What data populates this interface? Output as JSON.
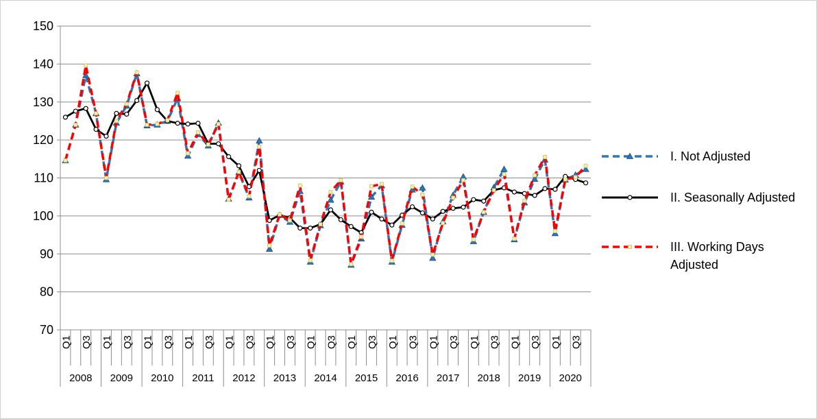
{
  "chart_data": {
    "type": "line",
    "categories": [
      "Q1",
      null,
      "Q3",
      null,
      "Q1",
      null,
      "Q3",
      null,
      "Q1",
      null,
      "Q3",
      null,
      "Q1",
      null,
      "Q3",
      null,
      "Q1",
      null,
      "Q3",
      null,
      "Q1",
      null,
      "Q3",
      null,
      "Q1",
      null,
      "Q3",
      null,
      "Q1",
      null,
      "Q3",
      null,
      "Q1",
      null,
      "Q3",
      null,
      "Q1",
      null,
      "Q3",
      null,
      "Q1",
      null,
      "Q3",
      null,
      "Q1",
      null,
      "Q3",
      null,
      "Q1",
      null,
      "Q3",
      null
    ],
    "x_groups": [
      "2008",
      "2009",
      "2010",
      "2011",
      "2012",
      "2013",
      "2014",
      "2015",
      "2016",
      "2017",
      "2018",
      "2019",
      "2020"
    ],
    "ylim": [
      70,
      150
    ],
    "yticks": [
      70,
      80,
      90,
      100,
      110,
      120,
      130,
      140,
      150
    ],
    "grid": true,
    "legend": "right",
    "series": [
      {
        "name": "I. Not Adjusted",
        "color": "#2e75b6",
        "dash": true,
        "marker": "triangle",
        "values": [
          114.6,
          124,
          137,
          127,
          109.6,
          124.5,
          129,
          137.5,
          123.8,
          124,
          125,
          131,
          115.8,
          121.5,
          118.5,
          124.5,
          104.5,
          111.5,
          104.8,
          119.8,
          91.3,
          100.2,
          98.4,
          106.5,
          87.9,
          97.5,
          104.2,
          109,
          87.1,
          94,
          105,
          108,
          87.9,
          97.6,
          106.9,
          107.4,
          88.9,
          98.5,
          105.5,
          110.3,
          93.3,
          101,
          107.5,
          112.3,
          93.8,
          103.5,
          109.7,
          114.8,
          95.4,
          109.5,
          110.8,
          112.3
        ]
      },
      {
        "name": "II. Seasonally Adjusted",
        "color": "#000000",
        "dash": false,
        "marker": "circle",
        "values": [
          126,
          127.6,
          128.3,
          122.8,
          121,
          127,
          126.8,
          130.4,
          135,
          128,
          125,
          124.4,
          124.2,
          124.4,
          119,
          119,
          115.6,
          113.2,
          107.7,
          112,
          98.8,
          100.2,
          99.5,
          96.8,
          96.8,
          97.8,
          101.6,
          99,
          97.2,
          95.6,
          101,
          99.2,
          97.6,
          100.2,
          102.4,
          100.8,
          99.2,
          101.2,
          102,
          102.3,
          104.3,
          103.9,
          106.8,
          107.4,
          106.3,
          105.9,
          105.4,
          107.2,
          107,
          110.4,
          109.6,
          108.7
        ]
      },
      {
        "name": "III. Working Days Adjusted",
        "color": "#ff0000",
        "dash": true,
        "marker": "square",
        "values": [
          114.6,
          124,
          139.6,
          127,
          110,
          125,
          129.5,
          137.8,
          124,
          124.2,
          125.2,
          132.4,
          116.5,
          122,
          118.8,
          124.2,
          104.3,
          111.6,
          105.2,
          118.2,
          92.2,
          100.4,
          98.8,
          108,
          88.3,
          97.8,
          106.3,
          109.4,
          87.3,
          94.5,
          107.8,
          108.4,
          88.2,
          98,
          107.7,
          105.6,
          89.8,
          98.1,
          104.8,
          109.4,
          93.8,
          101,
          106.8,
          111,
          94,
          104,
          110.7,
          115.5,
          96,
          109.6,
          110.2,
          113.2
        ]
      }
    ]
  }
}
